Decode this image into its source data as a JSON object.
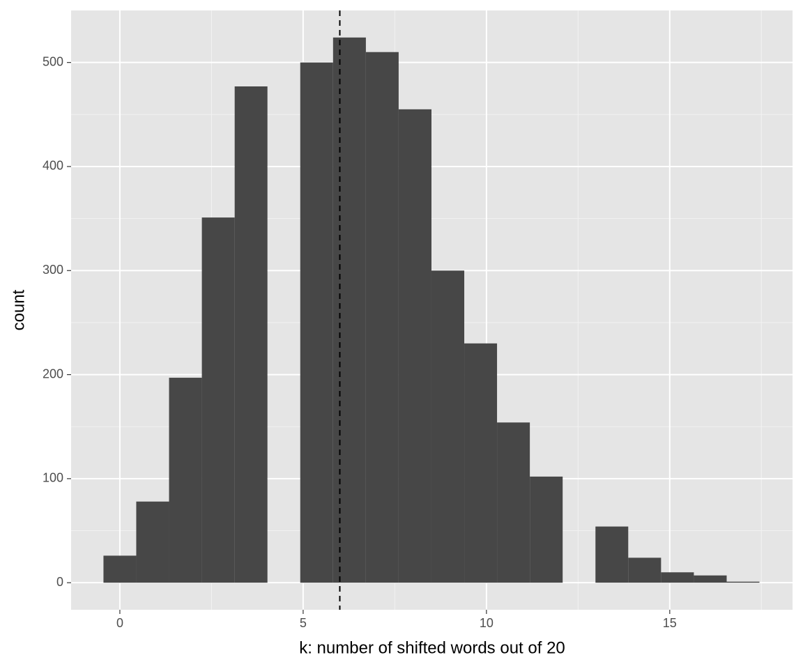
{
  "chart_data": {
    "type": "histogram",
    "x_label": "k: number of shifted words out of 20",
    "y_label": "count",
    "bins": [
      -0.447,
      0.447,
      1.342,
      2.237,
      3.132,
      4.026,
      4.921,
      5.816,
      6.711,
      7.605,
      8.5,
      9.395,
      10.289,
      11.184,
      12.079,
      12.974,
      13.868,
      14.763,
      15.658,
      16.553,
      17.447
    ],
    "values": [
      26,
      78,
      197,
      351,
      477,
      0,
      500,
      524,
      510,
      455,
      300,
      230,
      154,
      102,
      0,
      54,
      24,
      10,
      7,
      1
    ],
    "color": "#474747",
    "vline": 6,
    "xlim": [
      -1.33,
      18.35
    ],
    "ylim": [
      -26,
      550
    ],
    "xticks": [
      0,
      5,
      10,
      15
    ],
    "yticks": [
      0,
      100,
      200,
      300,
      400,
      500
    ],
    "x_minor_grid": [
      2.5,
      7.5,
      12.5,
      17.5
    ],
    "y_minor_grid": [
      50,
      150,
      250,
      350,
      450
    ],
    "grid": true,
    "panel_color": "#e5e5e5"
  }
}
